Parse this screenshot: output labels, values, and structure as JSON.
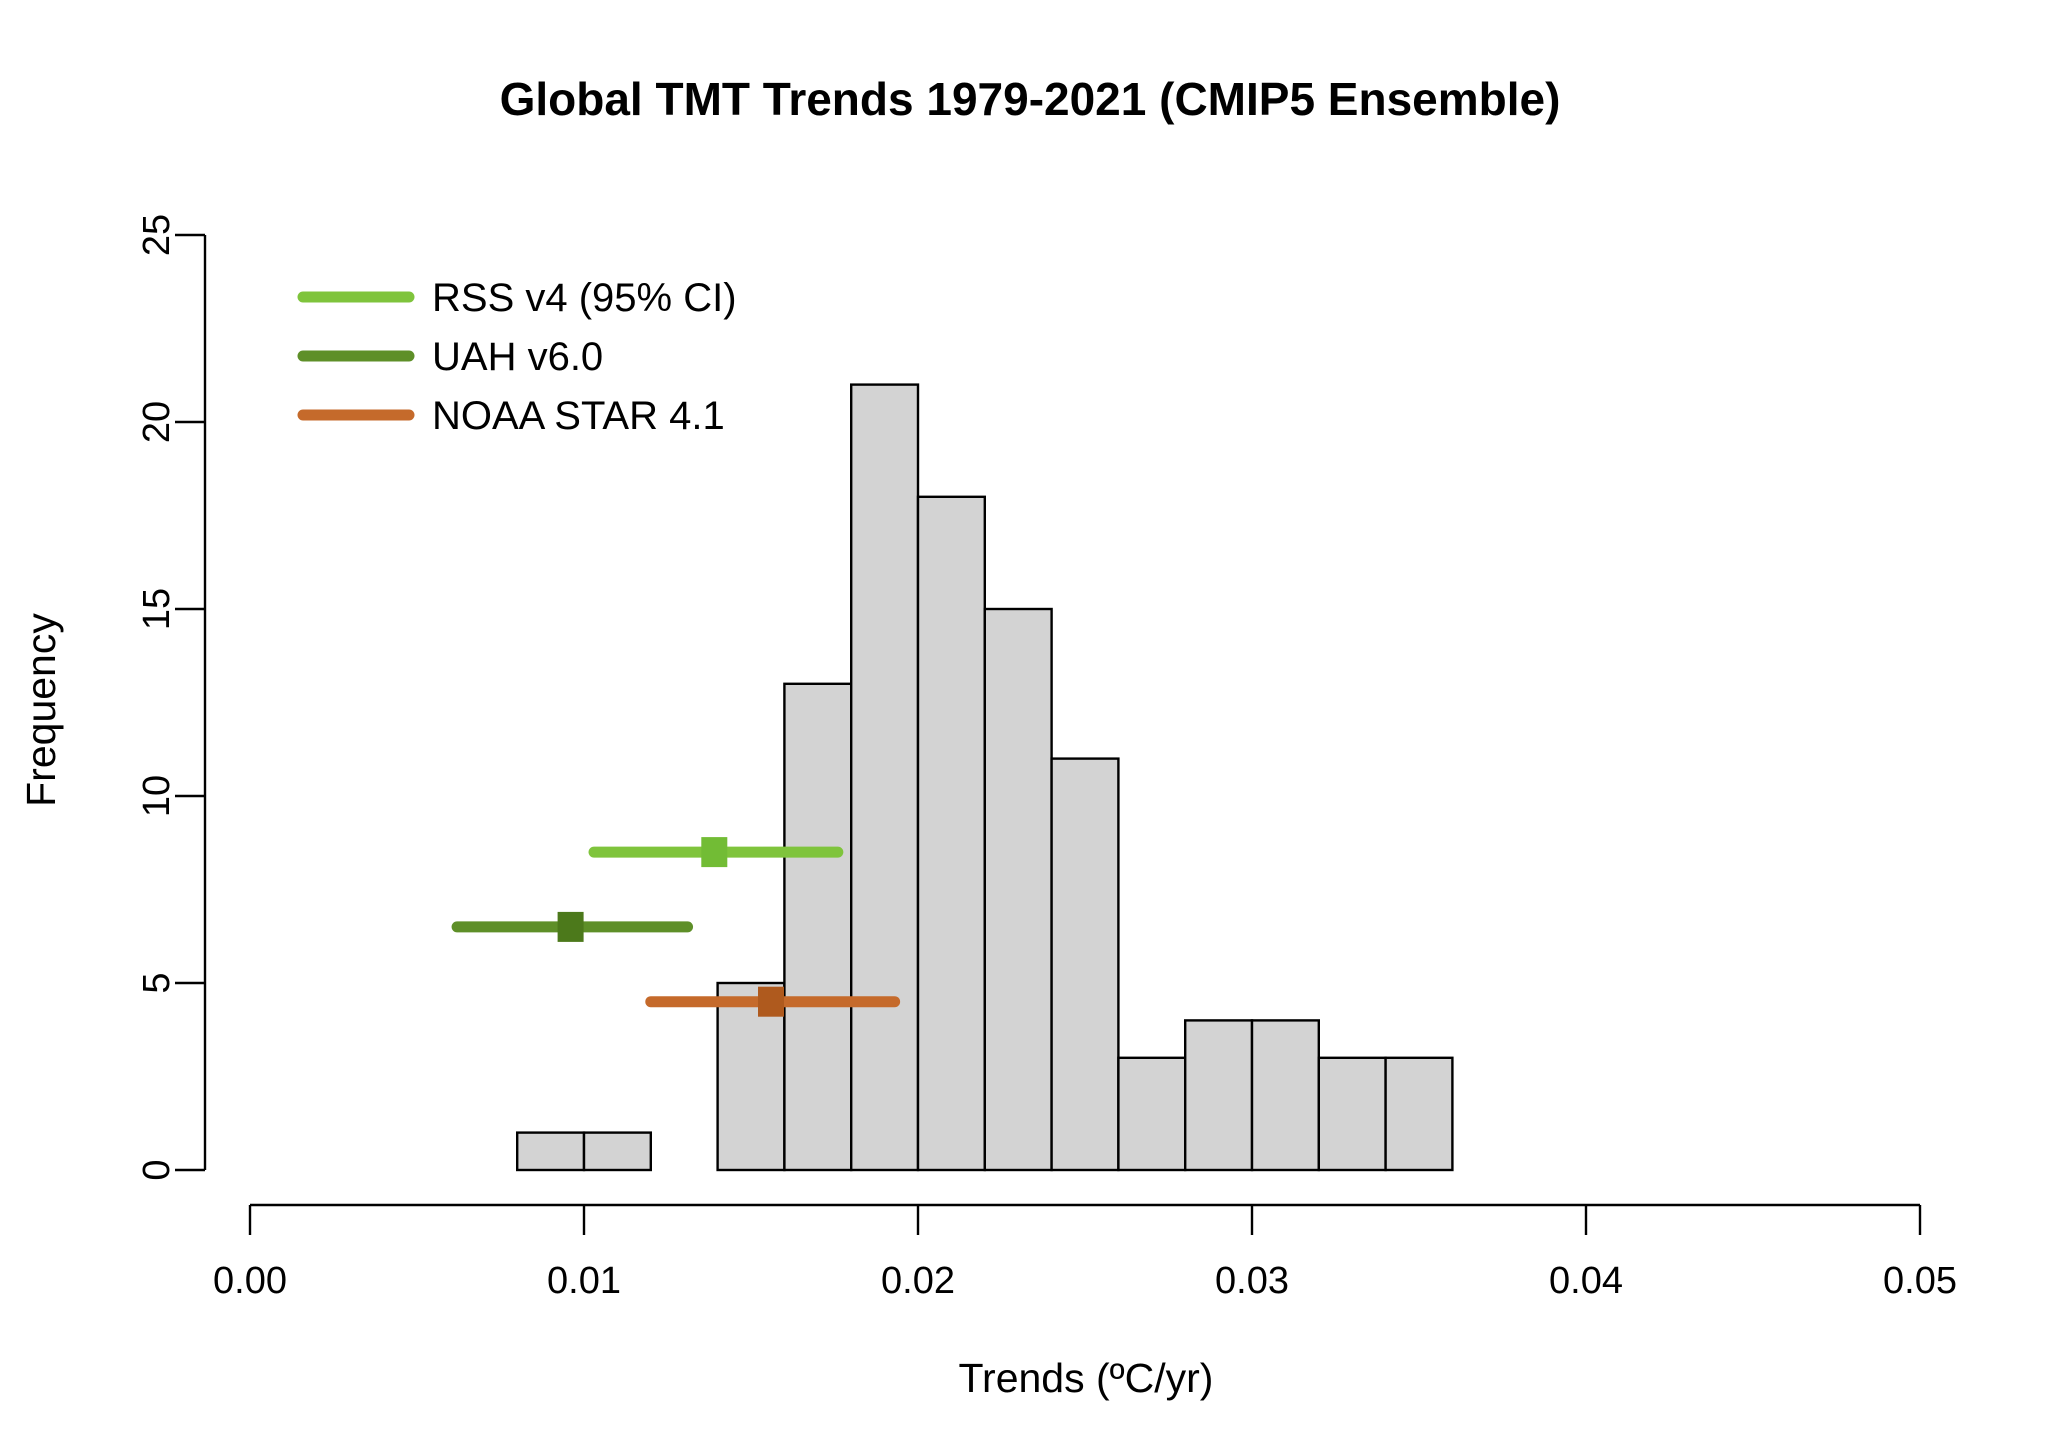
{
  "chart_data": {
    "type": "bar",
    "subtype": "histogram",
    "title": "Global TMT Trends 1979-2021 (CMIP5 Ensemble)",
    "xlabel": "Trends (ºC/yr)",
    "ylabel": "Frequency",
    "xlim": [
      0.0,
      0.05
    ],
    "ylim": [
      0,
      25
    ],
    "grid": false,
    "bar_fill": "#D3D3D3",
    "bar_stroke": "#000000",
    "bin_width": 0.002,
    "bins": [
      {
        "start": 0.008,
        "count": 1
      },
      {
        "start": 0.01,
        "count": 1
      },
      {
        "start": 0.012,
        "count": 0
      },
      {
        "start": 0.014,
        "count": 5
      },
      {
        "start": 0.016,
        "count": 13
      },
      {
        "start": 0.018,
        "count": 21
      },
      {
        "start": 0.02,
        "count": 18
      },
      {
        "start": 0.022,
        "count": 15
      },
      {
        "start": 0.024,
        "count": 11
      },
      {
        "start": 0.026,
        "count": 3
      },
      {
        "start": 0.028,
        "count": 4
      },
      {
        "start": 0.03,
        "count": 4
      },
      {
        "start": 0.032,
        "count": 3
      },
      {
        "start": 0.034,
        "count": 3
      }
    ],
    "x_ticks": [
      "0.00",
      "0.01",
      "0.02",
      "0.03",
      "0.04",
      "0.05"
    ],
    "x_tick_values": [
      0.0,
      0.01,
      0.02,
      0.03,
      0.04,
      0.05
    ],
    "y_ticks": [
      "0",
      "5",
      "10",
      "15",
      "20",
      "25"
    ],
    "y_tick_values": [
      0,
      5,
      10,
      15,
      20,
      25
    ],
    "legend_position": "top-left",
    "series": [
      {
        "name": "RSS v4 (95% CI)",
        "center": 0.0139,
        "ci_low": 0.0103,
        "ci_high": 0.0176,
        "row_y": 8.5,
        "color": "#7FC43C",
        "marker_color": "#72BC35"
      },
      {
        "name": "UAH v6.0",
        "center": 0.0096,
        "ci_low": 0.0062,
        "ci_high": 0.0131,
        "row_y": 6.5,
        "color": "#5E8F28",
        "marker_color": "#4C791B"
      },
      {
        "name": "NOAA STAR 4.1",
        "center": 0.0156,
        "ci_low": 0.012,
        "ci_high": 0.0193,
        "row_y": 4.5,
        "color": "#C56A2B",
        "marker_color": "#AF5A1E"
      }
    ]
  }
}
